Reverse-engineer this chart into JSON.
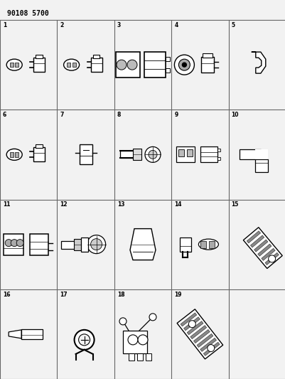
{
  "title": "90108 5700",
  "background_color": "#f0f0f0",
  "grid_color": "#333333",
  "text_color": "#000000",
  "figsize": [
    4.02,
    5.33
  ],
  "dpi": 100,
  "grid_line_color": "#666666"
}
